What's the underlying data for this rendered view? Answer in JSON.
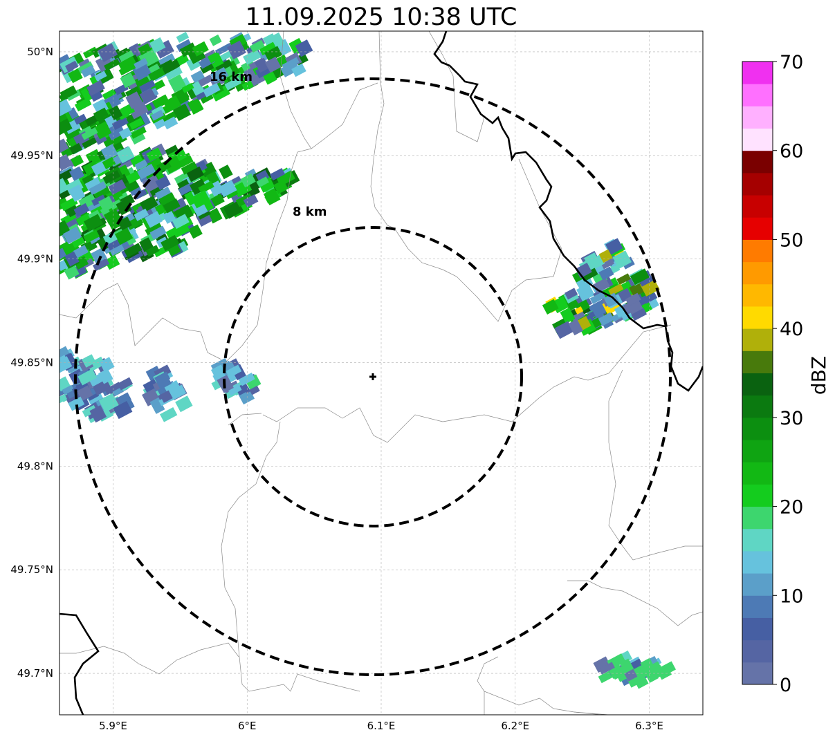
{
  "title": "11.09.2025 10:38 UTC",
  "map": {
    "x_ticks": [
      "5.9°E",
      "6°E",
      "6.1°E",
      "6.2°E",
      "6.3°E"
    ],
    "y_ticks": [
      "50°N",
      "49.95°N",
      "49.9°N",
      "49.85°N",
      "49.8°N",
      "49.75°N",
      "49.7°N"
    ],
    "x_tick_values": [
      5.9,
      6.0,
      6.1,
      6.2,
      6.3
    ],
    "y_tick_values": [
      50.0,
      49.95,
      49.9,
      49.85,
      49.8,
      49.75,
      49.7
    ],
    "lon_range": [
      5.86,
      6.34
    ],
    "lat_range": [
      49.68,
      50.01
    ],
    "grid": true,
    "radar_site": {
      "lon": 6.096,
      "lat": 49.843
    },
    "range_rings": [
      {
        "label": "8 km",
        "radius_km": 8
      },
      {
        "label": "16 km",
        "radius_km": 16
      }
    ]
  },
  "colorbar": {
    "label": "dBZ",
    "ticks": [
      "0",
      "10",
      "20",
      "30",
      "40",
      "50",
      "60",
      "70"
    ],
    "range": [
      0,
      70
    ],
    "colors": [
      "#6573a8",
      "#5565a3",
      "#465fa3",
      "#4d7ab5",
      "#5b9fc9",
      "#66c2dd",
      "#5fd6c4",
      "#3dd66e",
      "#14cc1e",
      "#12b814",
      "#0fa412",
      "#0c8f10",
      "#0b7a10",
      "#0a6210",
      "#487a0c",
      "#b0b00a",
      "#ffda00",
      "#ffb800",
      "#ff9a00",
      "#ff7b00",
      "#e60000",
      "#c80000",
      "#a50000",
      "#7a0000",
      "#ffe2ff",
      "#ffb0ff",
      "#ff70ff",
      "#f030f0"
    ]
  },
  "echo_cells": [
    {
      "name": "northwest-band",
      "center": [
        5.96,
        49.985
      ],
      "dbz_max": 32
    },
    {
      "name": "west-band",
      "center": [
        5.93,
        49.93
      ],
      "dbz_max": 35
    },
    {
      "name": "northeast-cell",
      "center": [
        6.26,
        49.875
      ],
      "dbz_max": 42
    },
    {
      "name": "west-small-cells",
      "center": [
        5.91,
        49.84
      ],
      "dbz_max": 15
    },
    {
      "name": "southeast-cell",
      "center": [
        6.28,
        49.7
      ],
      "dbz_max": 19
    }
  ]
}
